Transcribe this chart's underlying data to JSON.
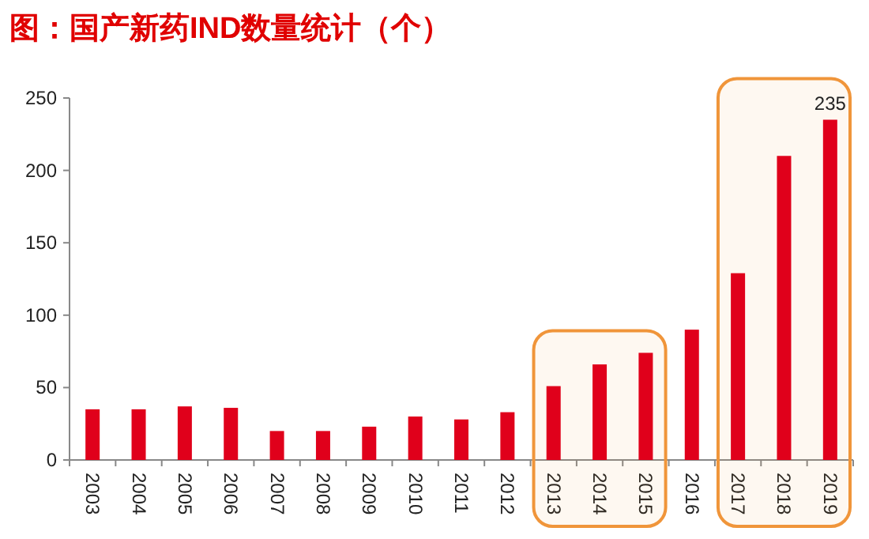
{
  "chart_data": {
    "type": "bar",
    "title": "图：国产新药IND数量统计（个）",
    "categories": [
      "2003",
      "2004",
      "2005",
      "2006",
      "2007",
      "2008",
      "2009",
      "2010",
      "2011",
      "2012",
      "2013",
      "2014",
      "2015",
      "2016",
      "2017",
      "2018",
      "2019"
    ],
    "series": [
      {
        "color": "#e0001b",
        "values": [
          35,
          35,
          37,
          36,
          20,
          20,
          23,
          30,
          28,
          33,
          51,
          66,
          74,
          90,
          129,
          210,
          235
        ],
        "value_labels": [
          null,
          null,
          null,
          null,
          null,
          null,
          null,
          null,
          null,
          null,
          null,
          null,
          null,
          null,
          null,
          null,
          "235"
        ]
      }
    ],
    "ylim": [
      0,
      250
    ],
    "yticks": [
      0,
      50,
      100,
      150,
      200,
      250
    ],
    "grid": false,
    "bands": [
      {
        "axis": "x",
        "from": "2013",
        "to": "2015",
        "color": "#f0953a"
      },
      {
        "axis": "x",
        "from": "2017",
        "to": "2019",
        "color": "#f0953a"
      }
    ]
  }
}
